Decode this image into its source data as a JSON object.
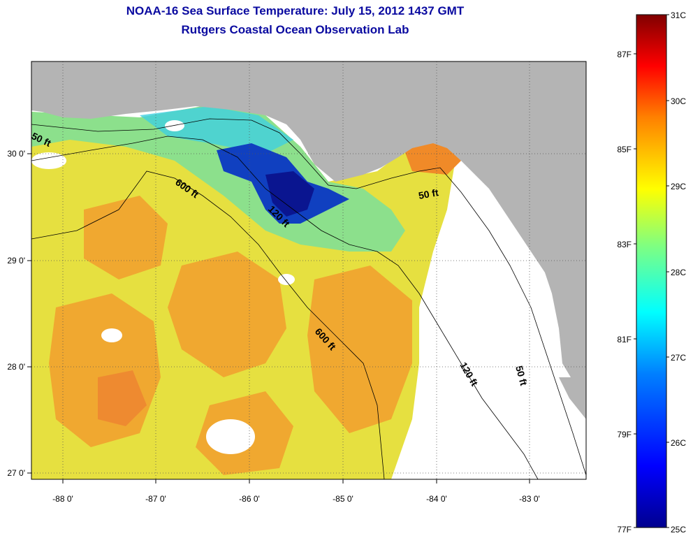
{
  "title": {
    "line1": "NOAA-16 Sea Surface Temperature:  July 15, 2012 1437 GMT",
    "line2": "Rutgers Coastal Ocean Observation Lab"
  },
  "map": {
    "lon_ticks": [
      "-88 0'",
      "-87 0'",
      "-86 0'",
      "-85 0'",
      "-84 0'",
      "-83 0'"
    ],
    "lat_ticks": [
      "30 0'",
      "29 0'",
      "28 0'",
      "27 0'"
    ],
    "contours": [
      {
        "label": "50 ft"
      },
      {
        "label": "600 ft"
      },
      {
        "label": "120 ft"
      },
      {
        "label": "50 ft"
      },
      {
        "label": "600 ft"
      },
      {
        "label": "120 ft"
      },
      {
        "label": "50 ft"
      }
    ]
  },
  "colorbar": {
    "celsius": [
      "31C",
      "30C",
      "29C",
      "28C",
      "27C",
      "26C",
      "25C"
    ],
    "fahrenheit": [
      "87F",
      "85F",
      "83F",
      "81F",
      "79F",
      "77F"
    ],
    "colors": [
      "#00008f",
      "#0000ff",
      "#0080ff",
      "#00ffff",
      "#80ff80",
      "#ffff00",
      "#ff8000",
      "#ff0000",
      "#800000"
    ]
  },
  "colors": {
    "land": "#b4b4b4",
    "warm": "#f0a830",
    "mid": "#e6e040",
    "cool": "#8ce08c",
    "cold": "#1040c0",
    "title": "#0a0aa0"
  }
}
